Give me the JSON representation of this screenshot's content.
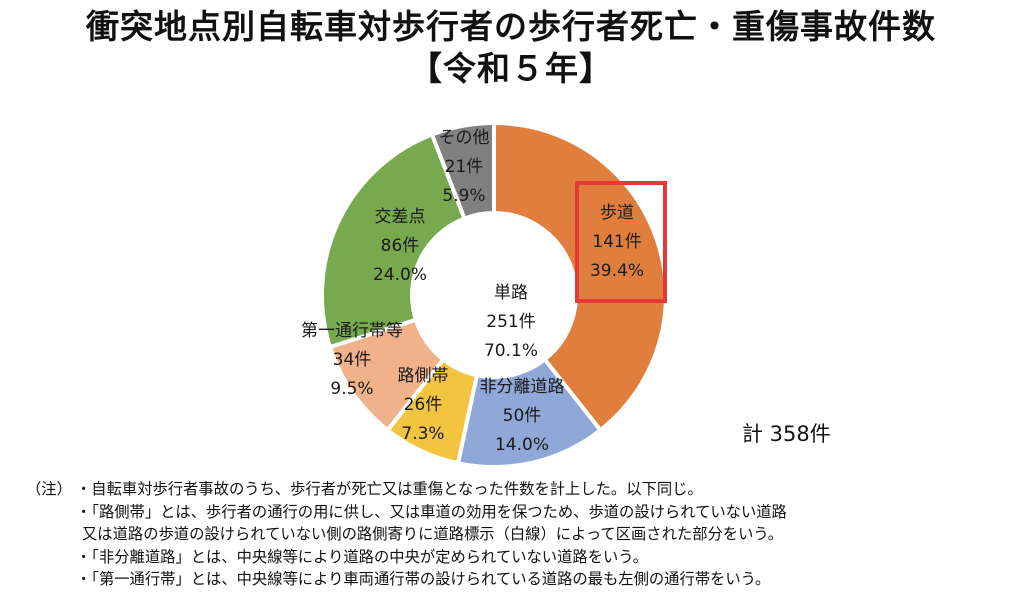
{
  "title": {
    "line1": "衝突地点別自転車対歩行者の歩行者死亡・重傷事故件数",
    "line2": "【令和５年】"
  },
  "chart_data": {
    "type": "pie",
    "variant": "donut",
    "total_label": "計 358件",
    "center": {
      "label": "単路",
      "count": "251件",
      "percent": "70.1%",
      "value": 251
    },
    "slices": [
      {
        "name": "歩道",
        "value": 141,
        "count": "141件",
        "percent": "39.4%",
        "color": "#E07E3E",
        "highlighted": true
      },
      {
        "name": "非分離道路",
        "value": 50,
        "count": "50件",
        "percent": "14.0%",
        "color": "#8FA8D8"
      },
      {
        "name": "路側帯",
        "value": 26,
        "count": "26件",
        "percent": "7.3%",
        "color": "#F3C43F"
      },
      {
        "name": "第一通行帯等",
        "value": 34,
        "count": "34件",
        "percent": "9.5%",
        "color": "#F0B28A"
      },
      {
        "name": "交差点",
        "value": 86,
        "count": "86件",
        "percent": "24.0%",
        "color": "#78A94F"
      },
      {
        "name": "その他",
        "value": 21,
        "count": "21件",
        "percent": "5.9%",
        "color": "#808080"
      }
    ],
    "highlight_color": "#E53935"
  },
  "notes": {
    "prefix": "（注）",
    "items": [
      "・自転車対歩行者事故のうち、歩行者が死亡又は重傷となった件数を計上した。以下同じ。",
      "・「路側帯」とは、歩行者の通行の用に供し、又は車道の効用を保つため、歩道の設けられていない道路",
      "又は道路の歩道の設けられていない側の路側寄りに道路標示（白線）によって区画された部分をいう。",
      "・「非分離道路」とは、中央線等により道路の中央が定められていない道路をいう。",
      "・「第一通行帯」とは、中央線等により車両通行帯の設けられている道路の最も左側の通行帯をいう。"
    ]
  }
}
